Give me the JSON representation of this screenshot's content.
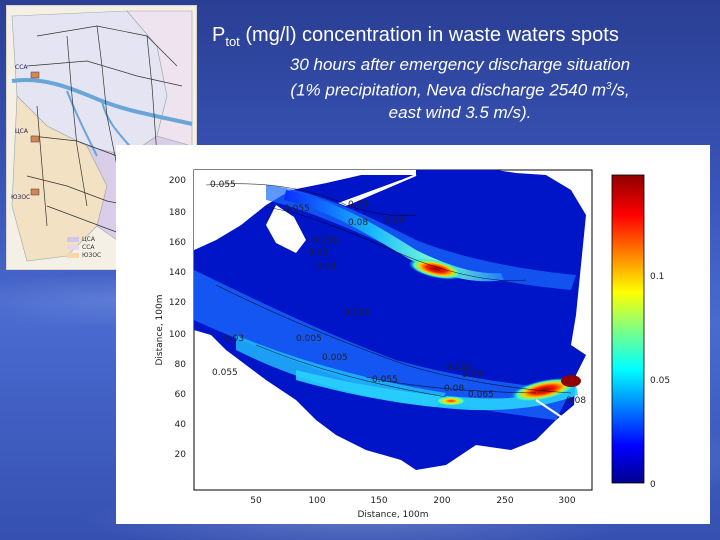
{
  "title": {
    "main_prefix": "P",
    "main_sub": "tot",
    "main_suffix": " (mg/l) concentration in waste waters spots",
    "line1": "30 hours after emergency discharge situation",
    "line2_prefix": "(1% precipitation, Neva discharge 2540 m",
    "line2_sup": "3",
    "line2_suffix": "/s,",
    "line3": "east wind 3.5 m/s)."
  },
  "inset_map": {
    "labels": [
      "ЦСА",
      "ССА",
      "ЮЗОС"
    ],
    "legend": [
      {
        "label": "ЦСА",
        "color": "#cfc6e8"
      },
      {
        "label": "ССА",
        "color": "#e7d7ec"
      },
      {
        "label": "ЮЗОС",
        "color": "#f5d7a9"
      }
    ]
  },
  "plot": {
    "xlabel": "Distance, 100m",
    "ylabel": "Distance, 100m",
    "x_ticks": [
      "50",
      "100",
      "150",
      "200",
      "250",
      "300"
    ],
    "y_ticks": [
      "20",
      "40",
      "60",
      "80",
      "100",
      "120",
      "140",
      "160",
      "180",
      "200"
    ],
    "colorbar_ticks": [
      "0.1",
      "0.05",
      "0"
    ],
    "contour_labels": [
      "0.055",
      "0.055",
      "0.05",
      "0.08",
      "0.05",
      "0.055",
      "0.05",
      "0.08",
      "0.055",
      "0.03",
      "0.005",
      "0.005",
      "0.055",
      "0.055",
      "0.08",
      "0.08",
      "0.065",
      "0.08",
      "0.055"
    ]
  },
  "colors": {
    "background": "#3550b0",
    "title_text": "#ffffff",
    "low": "#00008f",
    "high": "#8f0000"
  }
}
